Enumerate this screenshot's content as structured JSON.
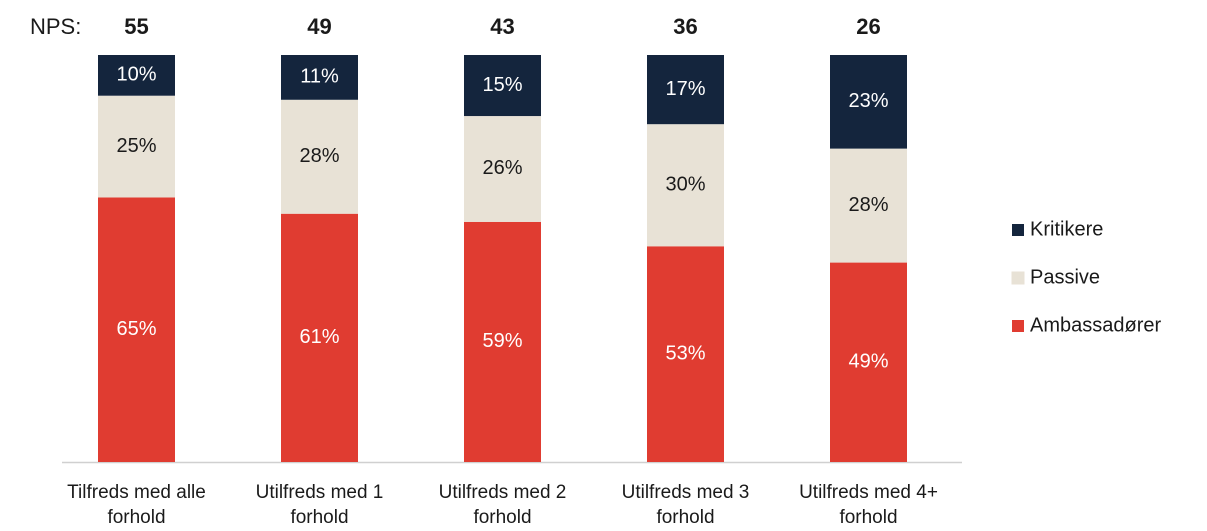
{
  "chart_data": {
    "type": "stacked_bar",
    "nps_label": "NPS:",
    "nps": [
      55,
      49,
      43,
      36,
      26
    ],
    "categories": [
      [
        "Tilfreds med alle",
        "forhold"
      ],
      [
        "Utilfreds med 1",
        "forhold"
      ],
      [
        "Utilfreds med 2",
        "forhold"
      ],
      [
        "Utilfreds med 3",
        "forhold"
      ],
      [
        "Utilfreds med 4+",
        "forhold"
      ]
    ],
    "series": [
      {
        "name": "Ambassadører",
        "color": "#e03c31",
        "label_color": "#ffffff",
        "values": [
          65,
          61,
          59,
          53,
          49
        ],
        "value_labels": [
          "65%",
          "61%",
          "59%",
          "53%",
          "49%"
        ]
      },
      {
        "name": "Passive",
        "color": "#e8e2d6",
        "label_color": "#1a1a1a",
        "values": [
          25,
          28,
          26,
          30,
          28
        ],
        "value_labels": [
          "25%",
          "28%",
          "26%",
          "30%",
          "28%"
        ]
      },
      {
        "name": "Kritikere",
        "color": "#14253d",
        "label_color": "#ffffff",
        "values": [
          10,
          11,
          15,
          17,
          23
        ],
        "value_labels": [
          "10%",
          "11%",
          "15%",
          "17%",
          "23%"
        ]
      }
    ],
    "ylim": [
      0,
      100
    ]
  }
}
